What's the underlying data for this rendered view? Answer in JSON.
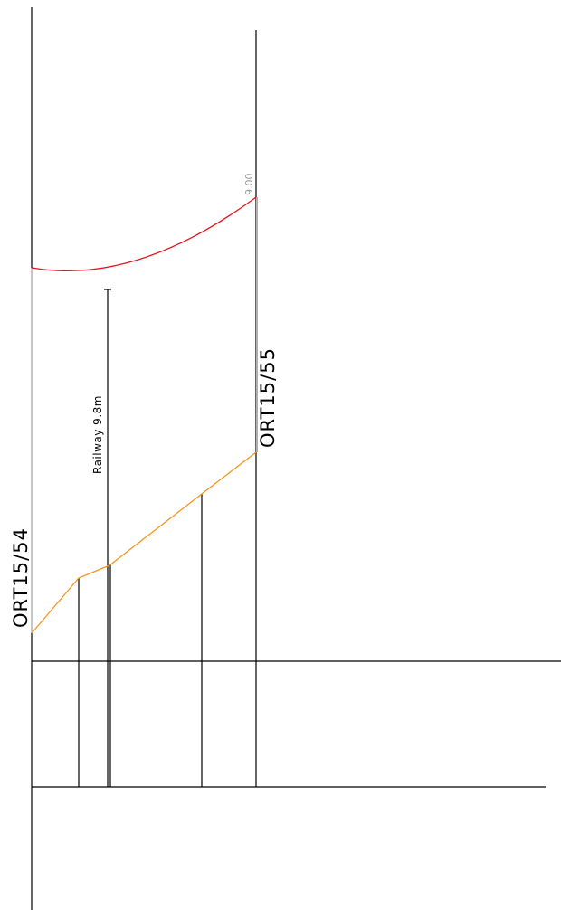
{
  "supports": {
    "left": {
      "label": "ORT15/54"
    },
    "right": {
      "label": "ORT15/55"
    }
  },
  "crossing": {
    "label": "Railway  9.8m"
  },
  "clearance": {
    "value": "9.00"
  },
  "colors": {
    "structure": "#000000",
    "conductor": "#e8141c",
    "ground_profile": "#f7941d",
    "clearance_text": "#9a9a9a",
    "support_highlight": "#b0b0b0"
  }
}
